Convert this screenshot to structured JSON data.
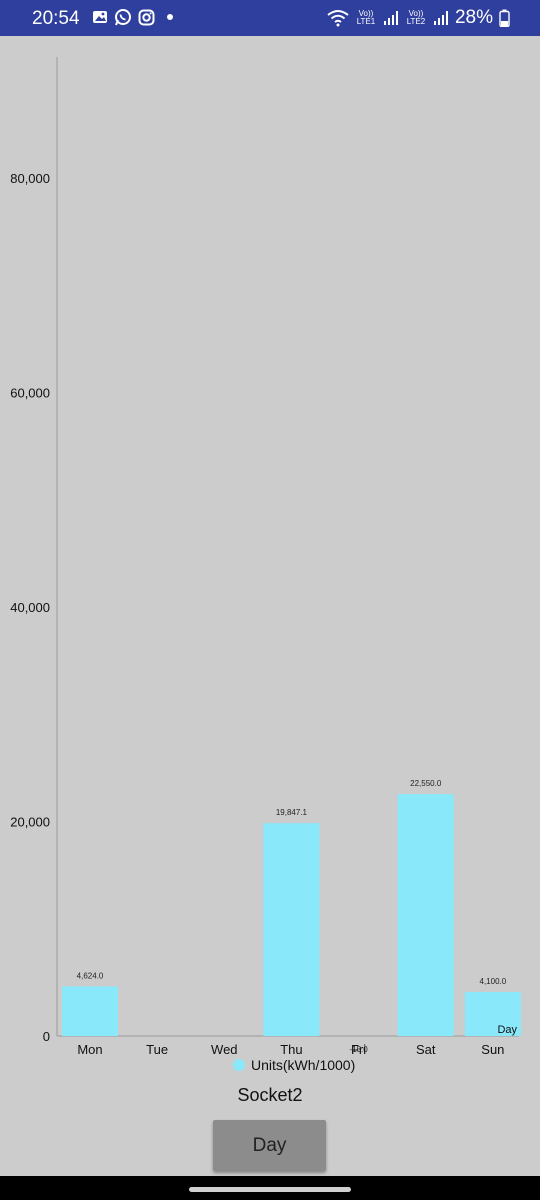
{
  "status_bar": {
    "time": "20:54",
    "left_icons": [
      "image-icon",
      "whatsapp-icon",
      "instagram-icon",
      "dot-icon"
    ],
    "right_icons": [
      "wifi-icon",
      "volte-lte1-icon",
      "signal-icon",
      "volte-lte2-icon",
      "signal-icon"
    ],
    "lte1_label": "Vo)) LTE1",
    "lte2_label": "Vo)) LTE2",
    "battery_text": "28%",
    "background": "#2e3f9d"
  },
  "chart_data": {
    "type": "bar",
    "categories": [
      "Mon",
      "Tue",
      "Wed",
      "Thu",
      "Fri",
      "Sat",
      "Sun"
    ],
    "series": [
      {
        "name": "Units(kWh/1000)",
        "values": [
          4624.0,
          0,
          0,
          19847.1,
          -15.0,
          22550.0,
          4100.0
        ],
        "value_labels": [
          "4,624.0",
          "",
          "",
          "19,847.1",
          "-15.0",
          "22,550.0",
          "4,100.0"
        ],
        "color": "#8ae8fb"
      }
    ],
    "yticks": [
      0,
      20000,
      40000,
      60000,
      80000
    ],
    "ytick_labels": [
      "0",
      "20,000",
      "40,000",
      "60,000",
      "80,000"
    ],
    "ylim": [
      0,
      91000
    ],
    "xlabel": "Day",
    "ylabel": "",
    "grid": false,
    "legend_position": "bottom-center"
  },
  "caption": "Socket2",
  "day_button_label": "Day"
}
